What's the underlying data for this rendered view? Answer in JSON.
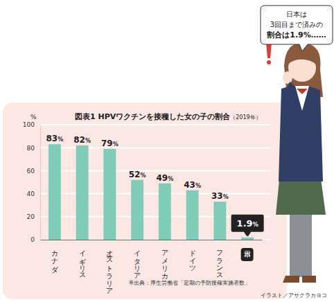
{
  "chart_data": {
    "type": "bar",
    "title": "図表1 HPVワクチンを接種した女の子の割合（2019年）",
    "ylabel": "%",
    "categories": [
      "カナダ",
      "イギリス",
      "オーストラリア",
      "イタリア",
      "アメリカ",
      "ドイツ",
      "フランス",
      "日本"
    ],
    "values": [
      83,
      82,
      79,
      52,
      49,
      43,
      33,
      1.9
    ],
    "value_labels": [
      "83%",
      "82%",
      "79%",
      "52%",
      "49%",
      "43%",
      "33%",
      "1.9%"
    ],
    "data_labels": true,
    "color": "#7fcdb9",
    "ylim": [
      0,
      100
    ],
    "yticks": [
      0,
      20,
      40,
      60,
      80,
      100
    ],
    "grid": true,
    "annotations": [
      "日本は\n3回目まで済みの\n割合は1.9%……",
      "※出典：厚生労働省「定期の予防接種実施者数」",
      "イラスト／アサクラカヨコ"
    ]
  }
}
